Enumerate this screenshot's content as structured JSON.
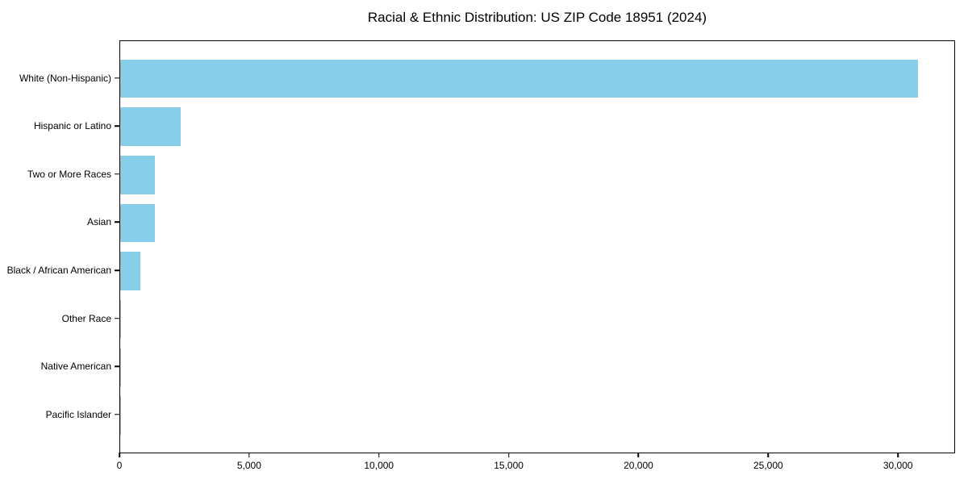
{
  "title": "Racial & Ethnic Distribution: US ZIP Code 18951 (2024)",
  "chart_data": {
    "type": "bar",
    "orientation": "horizontal",
    "title": "Racial & Ethnic Distribution: US ZIP Code 18951 (2024)",
    "xlabel": "",
    "ylabel": "",
    "categories": [
      "White (Non-Hispanic)",
      "Hispanic or Latino",
      "Two or More Races",
      "Asian",
      "Black / African American",
      "Other Race",
      "Native American",
      "Pacific Islander"
    ],
    "values": [
      30750,
      2340,
      1340,
      1330,
      790,
      30,
      15,
      5
    ],
    "xlim": [
      0,
      32200
    ],
    "x_ticks": [
      0,
      5000,
      10000,
      15000,
      20000,
      25000,
      30000
    ],
    "x_tick_labels": [
      "0",
      "5,000",
      "10,000",
      "15,000",
      "20,000",
      "25,000",
      "30,000"
    ],
    "grid": false,
    "legend": null,
    "bar_color": "#87CEEB"
  },
  "colors": {
    "bar": "#87CEEB",
    "axis": "#000000",
    "text": "#000000",
    "background": "#FFFFFF"
  }
}
